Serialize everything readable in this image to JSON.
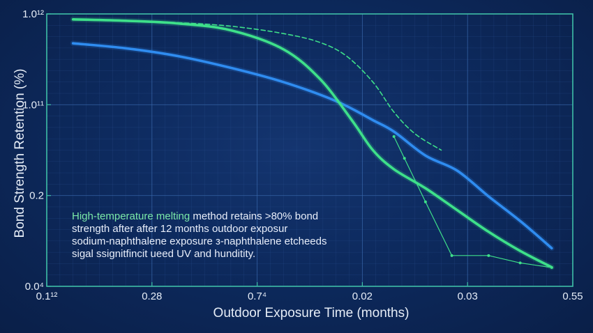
{
  "chart_data": {
    "type": "line",
    "title": "",
    "xlabel": "Outdoor Exposure Time (months)",
    "ylabel": "Bond Strength Retention (%)",
    "x_tick_labels": [
      "0.1¹²",
      "0.28",
      "0.7⁴",
      "0.02",
      "0.03",
      "0.55"
    ],
    "y_tick_labels": [
      "1.0¹²",
      "1.0¹¹",
      "0.2",
      "0.0⁴"
    ],
    "xlim": [
      0,
      1
    ],
    "ylim": [
      0,
      1
    ],
    "grid": true,
    "legend": "none",
    "series": [
      {
        "color": "#2f8cf0",
        "style": "solid",
        "x": [
          0.05,
          0.15,
          0.25,
          0.35,
          0.45,
          0.55,
          0.62,
          0.66,
          0.72,
          0.78,
          0.84,
          0.9,
          0.96
        ],
        "y": [
          0.892,
          0.874,
          0.845,
          0.802,
          0.75,
          0.68,
          0.61,
          0.568,
          0.48,
          0.425,
          0.33,
          0.24,
          0.14
        ]
      },
      {
        "color": "#3ee08a",
        "style": "solid",
        "x": [
          0.05,
          0.15,
          0.25,
          0.35,
          0.45,
          0.52,
          0.58,
          0.62,
          0.66,
          0.72,
          0.78,
          0.84,
          0.9,
          0.96
        ],
        "y": [
          0.98,
          0.975,
          0.965,
          0.94,
          0.87,
          0.76,
          0.61,
          0.5,
          0.43,
          0.36,
          0.28,
          0.2,
          0.13,
          0.07
        ]
      },
      {
        "color": "#3ee08a",
        "style": "dashed",
        "x": [
          0.05,
          0.15,
          0.25,
          0.35,
          0.45,
          0.52,
          0.57,
          0.62,
          0.66,
          0.7,
          0.75
        ],
        "y": [
          0.98,
          0.976,
          0.968,
          0.955,
          0.928,
          0.895,
          0.845,
          0.75,
          0.64,
          0.56,
          0.5
        ]
      },
      {
        "color": "#3ee08a",
        "style": "thin",
        "x": [
          0.66,
          0.68,
          0.72,
          0.77,
          0.84,
          0.9,
          0.96
        ],
        "y": [
          0.55,
          0.47,
          0.31,
          0.113,
          0.113,
          0.086,
          0.069
        ]
      }
    ],
    "annotation": {
      "lines": [
        "High-temperature melting method retains >80% bond",
        "strength after after 12 months outdoor exposur",
        "sodium-naphthalene exposure з-naphthalene etcheeds",
        "sigal ssignitfincit ueed UV and hunditity."
      ],
      "highlight_color": "#7be9a8",
      "text_color": "#e8eefa"
    }
  }
}
